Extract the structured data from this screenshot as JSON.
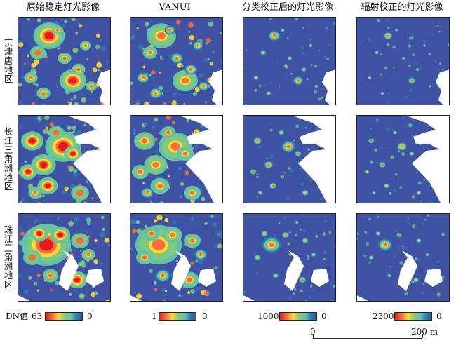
{
  "columns": [
    "原始稳定灯光影像",
    "VANUI",
    "分类校正后的灯光影像",
    "辐射校正的灯光影像"
  ],
  "rows": [
    "京津唐地区",
    "长江三角洲地区",
    "珠江三角洲地区"
  ],
  "legend": {
    "dn_label": "DN值",
    "bars": [
      {
        "min_label": "63",
        "max_label": "0",
        "direction": "red-to-blue"
      },
      {
        "min_label": "1",
        "max_label": "0",
        "direction": "red-to-blue"
      },
      {
        "min_label": "1000",
        "max_label": "0",
        "direction": "red-to-blue"
      },
      {
        "min_label": "2300",
        "max_label": "0",
        "direction": "red-to-blue"
      }
    ]
  },
  "scale_bar": {
    "start_label": "0",
    "end_label": "200 m"
  },
  "colors": {
    "background": "#3f52a4",
    "water": "#ffffff",
    "low": "#2c7bb6",
    "mid": "#7fc97f",
    "high": "#ffd92f",
    "peak": "#e41a1c"
  }
}
